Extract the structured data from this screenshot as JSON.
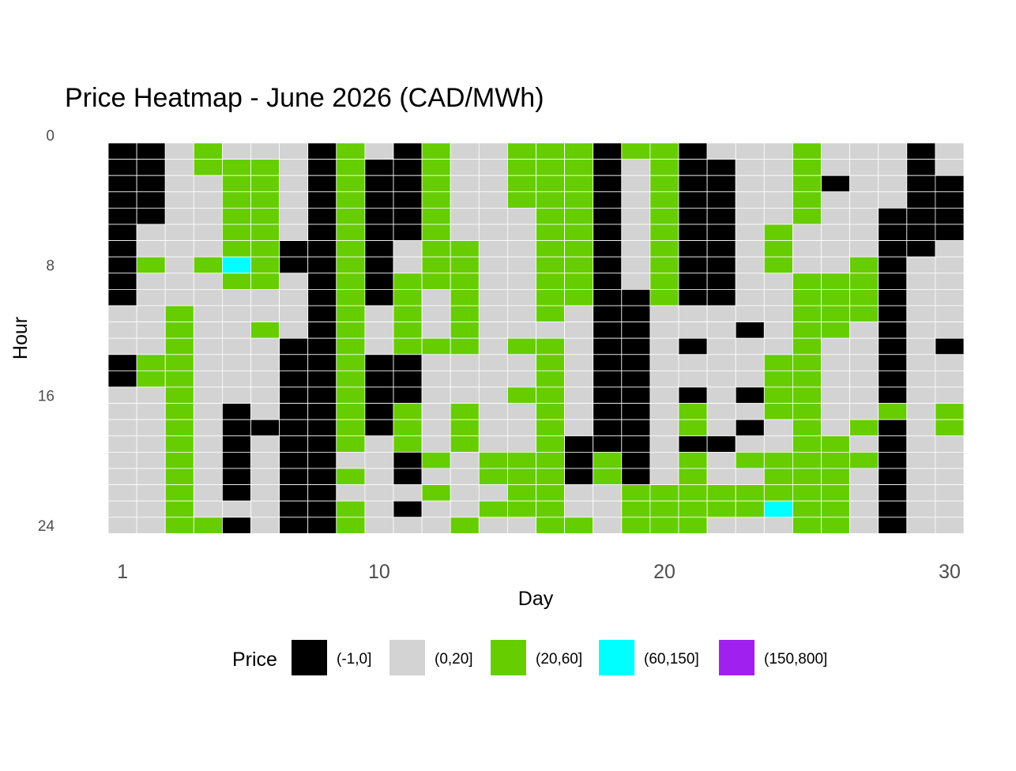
{
  "chart_data": {
    "type": "heatmap",
    "title": "Price Heatmap - June 2026 (CAD/MWh)",
    "xlabel": "Day",
    "ylabel": "Hour",
    "x_ticks": [
      "1",
      "10",
      "20",
      "30"
    ],
    "y_ticks": [
      "0",
      "8",
      "16",
      "24"
    ],
    "x_range": [
      1,
      30
    ],
    "y_range": [
      0,
      24
    ],
    "y_reversed": true,
    "grid": false,
    "legend": {
      "title": "Price",
      "position": "bottom",
      "bins": [
        {
          "label": "(-1,0]",
          "color": "#000000"
        },
        {
          "label": "(0,20]",
          "color": "#d3d3d3"
        },
        {
          "label": "(20,60]",
          "color": "#66cd00"
        },
        {
          "label": "(60,150]",
          "color": "#00ffff"
        },
        {
          "label": "(150,800]",
          "color": "#a020f0"
        }
      ]
    },
    "cell_encoding": "rows = hours 0-23 (top to bottom); each string has 30 chars for days 1-30; digit = price bin index: 0=(-1,0], 1=(0,20], 2=(20,60], 3=(60,150], 4=(150,800]",
    "rows": [
      "001211102102112220220111211101",
      "001222102002112220120011211101",
      "001122102002112220120011201100",
      "001122102002112220120011211100",
      "001122102002111220120011211000",
      "011122102002111220120012111000",
      "011122002012211220120012111001",
      "021232002012211220120012112011",
      "011122102022211220120011222011",
      "011111102021211220020011222011",
      "112111102121211210011111222011",
      "112112102121211110011101221011",
      "112111002122212210010111211010",
      "022111002001111210011112211011",
      "022111002001111210011112211011",
      "112111002001112210010102211011",
      "112101002021211210012112211212",
      "112100002021211210012101212012",
      "112101002121211200010011221011",
      "112101001102122202012122222011",
      "112101002101122202012112221011",
      "112101001112112211222222221011",
      "112111002101122211222223221011",
      "112201002111211221222111221011"
    ]
  }
}
